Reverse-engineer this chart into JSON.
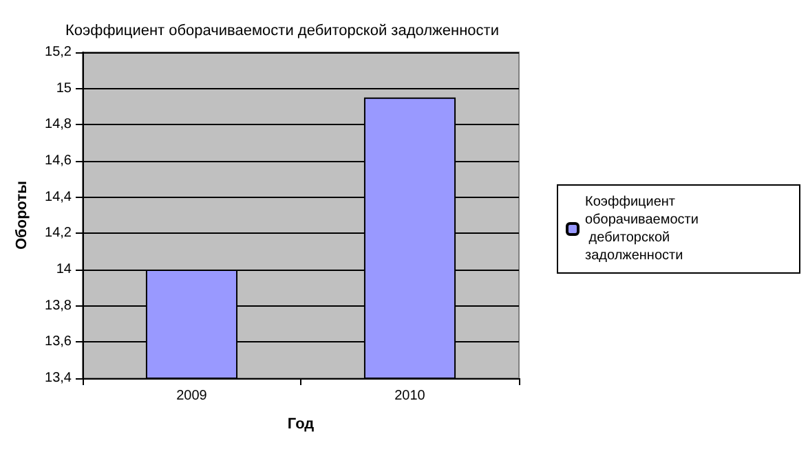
{
  "chart_data": {
    "type": "bar",
    "title": "Коэффициент оборачиваемости дебиторской задолженности",
    "xlabel": "Год",
    "ylabel": "Обороты",
    "categories": [
      "2009",
      "2010"
    ],
    "series": [
      {
        "name": "Коэффициент оборачиваемости дебиторской задолженности",
        "color": "#9999ff",
        "values": [
          14.0,
          14.95
        ]
      }
    ],
    "ylim": [
      13.4,
      15.2
    ],
    "yticks": [
      {
        "value": 13.4,
        "label": "13,4"
      },
      {
        "value": 13.6,
        "label": "13,6"
      },
      {
        "value": 13.8,
        "label": "13,8"
      },
      14,
      {
        "value": 14.2,
        "label": "14,2"
      },
      {
        "value": 14.4,
        "label": "14,4"
      },
      {
        "value": 14.6,
        "label": "14,6"
      },
      {
        "value": 14.8,
        "label": "14,8"
      },
      15,
      {
        "value": 15.2,
        "label": "15,2"
      }
    ],
    "grid": "y",
    "legend": "right"
  }
}
